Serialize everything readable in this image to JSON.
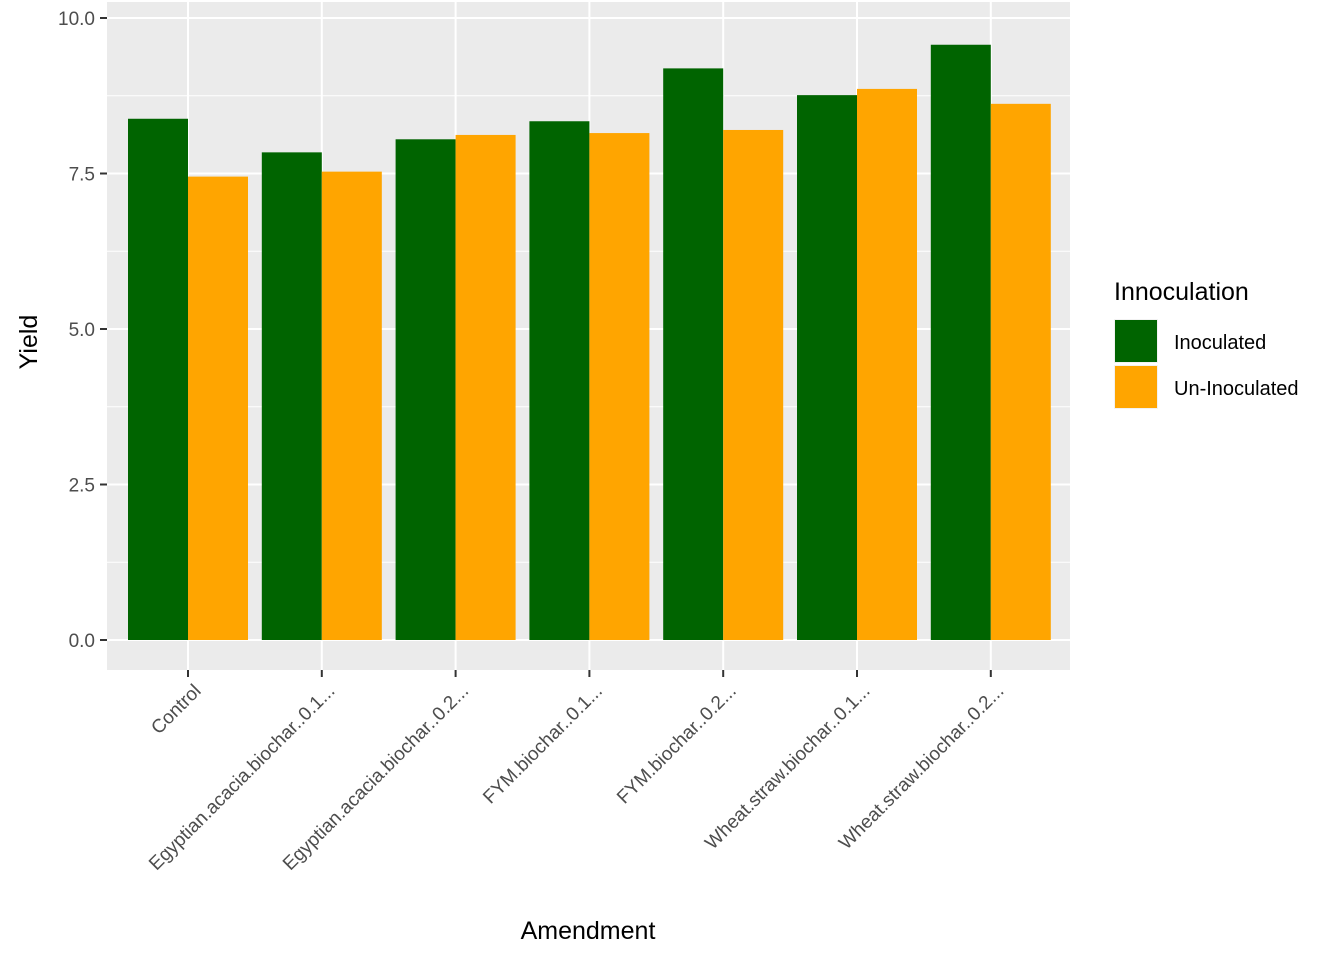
{
  "chart_data": {
    "type": "bar",
    "title": "",
    "xlabel": "Amendment",
    "ylabel": "Yield",
    "ylim": [
      0,
      10
    ],
    "yticks": [
      "0.0",
      "2.5",
      "5.0",
      "7.5",
      "10.0"
    ],
    "ytick_values": [
      0,
      2.5,
      5,
      7.5,
      10
    ],
    "grid": true,
    "legend_position": "right",
    "legend_title": "Innoculation",
    "categories": [
      "Control",
      "Egyptian.acacia.biochar..0.1...",
      "Egyptian.acacia.biochar..0.2...",
      "FYM.biochar..0.1...",
      "FYM.biochar..0.2...",
      "Wheat.straw.biochar..0.1...",
      "Wheat.straw.biochar..0.2..."
    ],
    "series": [
      {
        "name": "Inoculated",
        "color": "#006400",
        "values": [
          8.38,
          7.84,
          8.05,
          8.34,
          9.19,
          8.76,
          9.57
        ]
      },
      {
        "name": "Un-Inoculated",
        "color": "#FFA500",
        "values": [
          7.45,
          7.53,
          8.12,
          8.15,
          8.2,
          8.86,
          8.62
        ]
      }
    ]
  }
}
